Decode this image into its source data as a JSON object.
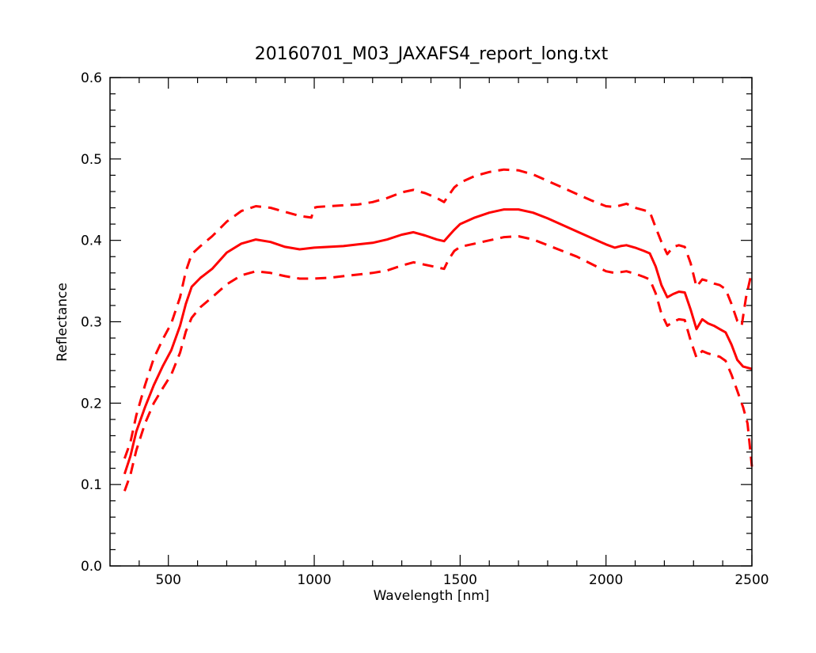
{
  "chart_data": {
    "type": "line",
    "title": "20160701_M03_JAXAFS4_report_long.txt",
    "xlabel": "Wavelength [nm]",
    "ylabel": "Reflectance",
    "xlim": [
      300,
      2500
    ],
    "ylim": [
      0.0,
      0.6
    ],
    "x_ticks": [
      500,
      1000,
      1500,
      2000,
      2500
    ],
    "x_tick_labels": [
      "500",
      "1000",
      "1500",
      "2000",
      "2500"
    ],
    "y_ticks": [
      0.0,
      0.1,
      0.2,
      0.3,
      0.4,
      0.5,
      0.6
    ],
    "y_tick_labels": [
      "0.0",
      "0.1",
      "0.2",
      "0.3",
      "0.4",
      "0.5",
      "0.6"
    ],
    "grid": false,
    "legend": "none",
    "color": "#ff0000",
    "series": [
      {
        "style": "solid",
        "points": [
          [
            350,
            0.113
          ],
          [
            370,
            0.135
          ],
          [
            390,
            0.165
          ],
          [
            420,
            0.195
          ],
          [
            450,
            0.222
          ],
          [
            480,
            0.245
          ],
          [
            510,
            0.265
          ],
          [
            540,
            0.295
          ],
          [
            560,
            0.322
          ],
          [
            580,
            0.343
          ],
          [
            610,
            0.354
          ],
          [
            650,
            0.365
          ],
          [
            700,
            0.385
          ],
          [
            750,
            0.396
          ],
          [
            800,
            0.401
          ],
          [
            850,
            0.398
          ],
          [
            900,
            0.392
          ],
          [
            950,
            0.389
          ],
          [
            1000,
            0.391
          ],
          [
            1050,
            0.392
          ],
          [
            1100,
            0.393
          ],
          [
            1150,
            0.395
          ],
          [
            1200,
            0.397
          ],
          [
            1250,
            0.401
          ],
          [
            1300,
            0.407
          ],
          [
            1340,
            0.41
          ],
          [
            1380,
            0.406
          ],
          [
            1420,
            0.401
          ],
          [
            1445,
            0.399
          ],
          [
            1460,
            0.405
          ],
          [
            1480,
            0.413
          ],
          [
            1500,
            0.42
          ],
          [
            1550,
            0.428
          ],
          [
            1600,
            0.434
          ],
          [
            1650,
            0.438
          ],
          [
            1700,
            0.438
          ],
          [
            1750,
            0.434
          ],
          [
            1800,
            0.427
          ],
          [
            1850,
            0.419
          ],
          [
            1900,
            0.411
          ],
          [
            1950,
            0.403
          ],
          [
            2000,
            0.395
          ],
          [
            2030,
            0.391
          ],
          [
            2050,
            0.393
          ],
          [
            2070,
            0.394
          ],
          [
            2100,
            0.391
          ],
          [
            2130,
            0.387
          ],
          [
            2150,
            0.384
          ],
          [
            2170,
            0.368
          ],
          [
            2190,
            0.345
          ],
          [
            2210,
            0.33
          ],
          [
            2230,
            0.334
          ],
          [
            2250,
            0.337
          ],
          [
            2270,
            0.336
          ],
          [
            2290,
            0.315
          ],
          [
            2310,
            0.291
          ],
          [
            2330,
            0.303
          ],
          [
            2350,
            0.298
          ],
          [
            2370,
            0.295
          ],
          [
            2390,
            0.291
          ],
          [
            2410,
            0.287
          ],
          [
            2430,
            0.272
          ],
          [
            2450,
            0.253
          ],
          [
            2470,
            0.245
          ],
          [
            2500,
            0.242
          ]
        ]
      },
      {
        "style": "dashed",
        "points": [
          [
            350,
            0.132
          ],
          [
            370,
            0.152
          ],
          [
            390,
            0.185
          ],
          [
            420,
            0.222
          ],
          [
            450,
            0.255
          ],
          [
            480,
            0.278
          ],
          [
            510,
            0.298
          ],
          [
            540,
            0.33
          ],
          [
            560,
            0.362
          ],
          [
            580,
            0.383
          ],
          [
            610,
            0.393
          ],
          [
            650,
            0.405
          ],
          [
            700,
            0.423
          ],
          [
            750,
            0.436
          ],
          [
            800,
            0.442
          ],
          [
            850,
            0.44
          ],
          [
            900,
            0.435
          ],
          [
            950,
            0.43
          ],
          [
            990,
            0.428
          ],
          [
            1000,
            0.44
          ],
          [
            1010,
            0.441
          ],
          [
            1050,
            0.442
          ],
          [
            1100,
            0.443
          ],
          [
            1150,
            0.444
          ],
          [
            1200,
            0.447
          ],
          [
            1250,
            0.452
          ],
          [
            1300,
            0.459
          ],
          [
            1340,
            0.462
          ],
          [
            1380,
            0.458
          ],
          [
            1420,
            0.452
          ],
          [
            1445,
            0.447
          ],
          [
            1460,
            0.455
          ],
          [
            1480,
            0.465
          ],
          [
            1500,
            0.471
          ],
          [
            1550,
            0.479
          ],
          [
            1600,
            0.484
          ],
          [
            1650,
            0.487
          ],
          [
            1700,
            0.486
          ],
          [
            1750,
            0.481
          ],
          [
            1800,
            0.473
          ],
          [
            1850,
            0.465
          ],
          [
            1900,
            0.457
          ],
          [
            1950,
            0.449
          ],
          [
            2000,
            0.442
          ],
          [
            2030,
            0.441
          ],
          [
            2050,
            0.443
          ],
          [
            2070,
            0.445
          ],
          [
            2100,
            0.44
          ],
          [
            2130,
            0.437
          ],
          [
            2150,
            0.435
          ],
          [
            2170,
            0.416
          ],
          [
            2190,
            0.398
          ],
          [
            2210,
            0.383
          ],
          [
            2230,
            0.392
          ],
          [
            2250,
            0.394
          ],
          [
            2270,
            0.392
          ],
          [
            2290,
            0.372
          ],
          [
            2310,
            0.343
          ],
          [
            2330,
            0.352
          ],
          [
            2350,
            0.35
          ],
          [
            2370,
            0.347
          ],
          [
            2390,
            0.345
          ],
          [
            2410,
            0.34
          ],
          [
            2430,
            0.322
          ],
          [
            2450,
            0.301
          ],
          [
            2465,
            0.295
          ],
          [
            2480,
            0.33
          ],
          [
            2500,
            0.362
          ]
        ]
      },
      {
        "style": "dashed",
        "points": [
          [
            350,
            0.092
          ],
          [
            370,
            0.112
          ],
          [
            390,
            0.142
          ],
          [
            420,
            0.175
          ],
          [
            450,
            0.2
          ],
          [
            480,
            0.218
          ],
          [
            510,
            0.235
          ],
          [
            540,
            0.262
          ],
          [
            560,
            0.288
          ],
          [
            580,
            0.305
          ],
          [
            610,
            0.318
          ],
          [
            650,
            0.33
          ],
          [
            700,
            0.346
          ],
          [
            750,
            0.357
          ],
          [
            800,
            0.362
          ],
          [
            850,
            0.36
          ],
          [
            900,
            0.356
          ],
          [
            950,
            0.353
          ],
          [
            1000,
            0.353
          ],
          [
            1050,
            0.354
          ],
          [
            1100,
            0.356
          ],
          [
            1150,
            0.358
          ],
          [
            1200,
            0.36
          ],
          [
            1250,
            0.363
          ],
          [
            1300,
            0.369
          ],
          [
            1340,
            0.373
          ],
          [
            1380,
            0.37
          ],
          [
            1420,
            0.367
          ],
          [
            1445,
            0.365
          ],
          [
            1460,
            0.376
          ],
          [
            1480,
            0.387
          ],
          [
            1500,
            0.392
          ],
          [
            1550,
            0.396
          ],
          [
            1600,
            0.4
          ],
          [
            1650,
            0.404
          ],
          [
            1700,
            0.405
          ],
          [
            1750,
            0.401
          ],
          [
            1800,
            0.394
          ],
          [
            1850,
            0.387
          ],
          [
            1900,
            0.38
          ],
          [
            1950,
            0.371
          ],
          [
            2000,
            0.362
          ],
          [
            2030,
            0.36
          ],
          [
            2050,
            0.361
          ],
          [
            2070,
            0.362
          ],
          [
            2100,
            0.359
          ],
          [
            2130,
            0.355
          ],
          [
            2150,
            0.352
          ],
          [
            2170,
            0.335
          ],
          [
            2190,
            0.31
          ],
          [
            2210,
            0.295
          ],
          [
            2230,
            0.3
          ],
          [
            2250,
            0.303
          ],
          [
            2270,
            0.302
          ],
          [
            2290,
            0.277
          ],
          [
            2310,
            0.256
          ],
          [
            2330,
            0.264
          ],
          [
            2350,
            0.261
          ],
          [
            2370,
            0.259
          ],
          [
            2390,
            0.257
          ],
          [
            2410,
            0.252
          ],
          [
            2430,
            0.235
          ],
          [
            2450,
            0.215
          ],
          [
            2470,
            0.195
          ],
          [
            2485,
            0.175
          ],
          [
            2500,
            0.122
          ]
        ]
      }
    ]
  }
}
